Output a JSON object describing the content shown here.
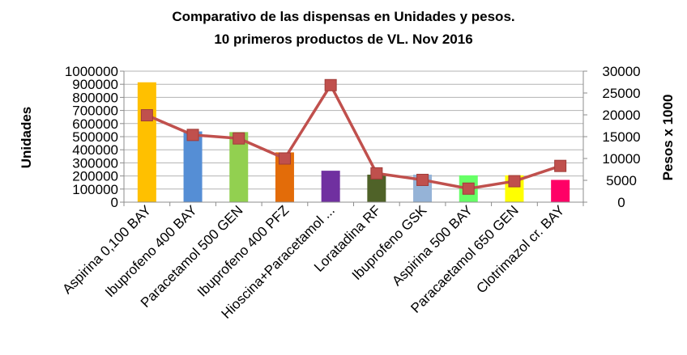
{
  "chart_data": {
    "type": "bar",
    "title": "Comparativo de las dispensas en Unidades y pesos.",
    "subtitle": "10 primeros productos de VL. Nov 2016",
    "ylabel": "Unidades",
    "y2label": "Pesos x 1000",
    "ylim": [
      0,
      1000000
    ],
    "y2lim": [
      0,
      30000
    ],
    "yticks": [
      "0",
      "100000",
      "200000",
      "300000",
      "400000",
      "500000",
      "600000",
      "700000",
      "800000",
      "900000",
      "1000000"
    ],
    "y2ticks": [
      "0",
      "5000",
      "10000",
      "15000",
      "20000",
      "25000",
      "30000"
    ],
    "grid": true,
    "categories": [
      "Aspirina 0,100 BAY",
      "Ibuprofeno 400 BAY",
      "Paracetamol 500 GEN",
      "Ibuprofeno 400 PFZ",
      "Hioscina+Paracetamol ...",
      "Loratadina RF",
      "Ibuprofeno  GSK",
      "Aspirina 500 BAY",
      "Paracaetamol 650 GEN",
      "Clotrimazol cr. BAY"
    ],
    "series": [
      {
        "type": "bar",
        "axis": "left",
        "values": [
          915000,
          540000,
          535000,
          380000,
          240000,
          210000,
          210000,
          205000,
          205000,
          170000
        ],
        "colors": [
          "#ffc000",
          "#558ed5",
          "#92d050",
          "#e36c09",
          "#7030a0",
          "#4f6228",
          "#95b3d7",
          "#66ff66",
          "#ffff00",
          "#ff0066"
        ]
      },
      {
        "type": "line",
        "axis": "right",
        "values": [
          19900,
          15400,
          14600,
          10000,
          26800,
          6600,
          5100,
          3100,
          4800,
          8300
        ],
        "color": "#c0504d"
      }
    ]
  }
}
